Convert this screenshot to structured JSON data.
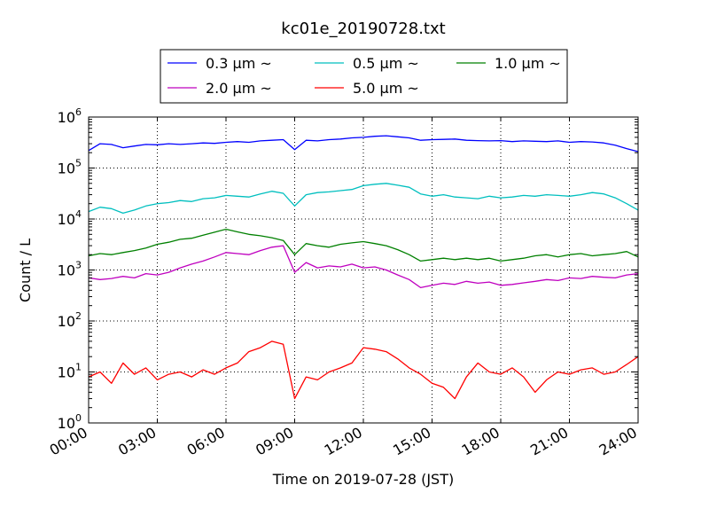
{
  "chart_data": {
    "type": "line",
    "title": "kc01e_20190728.txt",
    "xlabel": "Time on 2019-07-28 (JST)",
    "ylabel": "Count / L",
    "xlim": [
      "00:00",
      "24:00"
    ],
    "x_tick_labels": [
      "00:00",
      "03:00",
      "06:00",
      "09:00",
      "12:00",
      "15:00",
      "18:00",
      "21:00",
      "24:00"
    ],
    "y_scale": "log",
    "ylim": [
      1,
      1000000
    ],
    "y_tick_labels": [
      {
        "base": "10",
        "exp": "0"
      },
      {
        "base": "10",
        "exp": "1"
      },
      {
        "base": "10",
        "exp": "2"
      },
      {
        "base": "10",
        "exp": "3"
      },
      {
        "base": "10",
        "exp": "4"
      },
      {
        "base": "10",
        "exp": "5"
      },
      {
        "base": "10",
        "exp": "6"
      }
    ],
    "grid": true,
    "legend_position": "top",
    "series": [
      {
        "name": "0.3 µm ~",
        "color": "#0000ff",
        "x": [
          "00:00",
          "00:30",
          "01:00",
          "01:30",
          "02:00",
          "02:30",
          "03:00",
          "03:30",
          "04:00",
          "04:30",
          "05:00",
          "05:30",
          "06:00",
          "06:30",
          "07:00",
          "07:30",
          "08:00",
          "08:30",
          "09:00",
          "09:30",
          "10:00",
          "10:30",
          "11:00",
          "11:30",
          "12:00",
          "12:30",
          "13:00",
          "13:30",
          "14:00",
          "14:30",
          "15:00",
          "15:30",
          "16:00",
          "16:30",
          "17:00",
          "17:30",
          "18:00",
          "18:30",
          "19:00",
          "19:30",
          "20:00",
          "20:30",
          "21:00",
          "21:30",
          "22:00",
          "22:30",
          "23:00",
          "23:30",
          "24:00"
        ],
        "values": [
          220000,
          300000,
          290000,
          250000,
          270000,
          290000,
          285000,
          300000,
          290000,
          300000,
          310000,
          305000,
          320000,
          330000,
          320000,
          340000,
          350000,
          360000,
          230000,
          350000,
          340000,
          360000,
          370000,
          390000,
          400000,
          420000,
          430000,
          410000,
          390000,
          350000,
          360000,
          365000,
          370000,
          350000,
          345000,
          340000,
          345000,
          330000,
          340000,
          335000,
          330000,
          340000,
          320000,
          330000,
          325000,
          310000,
          280000,
          240000,
          210000
        ]
      },
      {
        "name": "0.5 µm ~",
        "color": "#00bfbf",
        "x": [
          "00:00",
          "00:30",
          "01:00",
          "01:30",
          "02:00",
          "02:30",
          "03:00",
          "03:30",
          "04:00",
          "04:30",
          "05:00",
          "05:30",
          "06:00",
          "06:30",
          "07:00",
          "07:30",
          "08:00",
          "08:30",
          "09:00",
          "09:30",
          "10:00",
          "10:30",
          "11:00",
          "11:30",
          "12:00",
          "12:30",
          "13:00",
          "13:30",
          "14:00",
          "14:30",
          "15:00",
          "15:30",
          "16:00",
          "16:30",
          "17:00",
          "17:30",
          "18:00",
          "18:30",
          "19:00",
          "19:30",
          "20:00",
          "20:30",
          "21:00",
          "21:30",
          "22:00",
          "22:30",
          "23:00",
          "23:30",
          "24:00"
        ],
        "values": [
          14000,
          17000,
          16000,
          13000,
          15000,
          18000,
          20000,
          21000,
          23000,
          22000,
          25000,
          26000,
          29000,
          28000,
          27000,
          31000,
          35000,
          32000,
          18000,
          30000,
          33000,
          34000,
          36000,
          38000,
          45000,
          48000,
          50000,
          46000,
          42000,
          31000,
          28000,
          30000,
          27000,
          26000,
          25000,
          28000,
          26000,
          27000,
          29000,
          28000,
          30000,
          29000,
          28000,
          30000,
          33000,
          31000,
          26000,
          20000,
          15000
        ]
      },
      {
        "name": "1.0 µm ~",
        "color": "#008000",
        "x": [
          "00:00",
          "00:30",
          "01:00",
          "01:30",
          "02:00",
          "02:30",
          "03:00",
          "03:30",
          "04:00",
          "04:30",
          "05:00",
          "05:30",
          "06:00",
          "06:30",
          "07:00",
          "07:30",
          "08:00",
          "08:30",
          "09:00",
          "09:30",
          "10:00",
          "10:30",
          "11:00",
          "11:30",
          "12:00",
          "12:30",
          "13:00",
          "13:30",
          "14:00",
          "14:30",
          "15:00",
          "15:30",
          "16:00",
          "16:30",
          "17:00",
          "17:30",
          "18:00",
          "18:30",
          "19:00",
          "19:30",
          "20:00",
          "20:30",
          "21:00",
          "21:30",
          "22:00",
          "22:30",
          "23:00",
          "23:30",
          "24:00"
        ],
        "values": [
          1900,
          2100,
          2000,
          2200,
          2400,
          2700,
          3200,
          3500,
          4000,
          4200,
          4800,
          5500,
          6300,
          5600,
          5000,
          4700,
          4300,
          3800,
          2000,
          3300,
          3000,
          2800,
          3200,
          3400,
          3600,
          3300,
          3000,
          2500,
          2000,
          1500,
          1600,
          1700,
          1600,
          1700,
          1600,
          1700,
          1500,
          1600,
          1700,
          1900,
          2000,
          1800,
          2000,
          2100,
          1900,
          2000,
          2100,
          2300,
          1800
        ]
      },
      {
        "name": "2.0 µm ~",
        "color": "#bf00bf",
        "x": [
          "00:00",
          "00:30",
          "01:00",
          "01:30",
          "02:00",
          "02:30",
          "03:00",
          "03:30",
          "04:00",
          "04:30",
          "05:00",
          "05:30",
          "06:00",
          "06:30",
          "07:00",
          "07:30",
          "08:00",
          "08:30",
          "09:00",
          "09:30",
          "10:00",
          "10:30",
          "11:00",
          "11:30",
          "12:00",
          "12:30",
          "13:00",
          "13:30",
          "14:00",
          "14:30",
          "15:00",
          "15:30",
          "16:00",
          "16:30",
          "17:00",
          "17:30",
          "18:00",
          "18:30",
          "19:00",
          "19:30",
          "20:00",
          "20:30",
          "21:00",
          "21:30",
          "22:00",
          "22:30",
          "23:00",
          "23:30",
          "24:00"
        ],
        "values": [
          700,
          650,
          680,
          750,
          700,
          850,
          800,
          900,
          1100,
          1300,
          1500,
          1800,
          2200,
          2100,
          2000,
          2400,
          2800,
          3000,
          900,
          1400,
          1100,
          1200,
          1150,
          1300,
          1100,
          1150,
          1000,
          800,
          650,
          450,
          500,
          550,
          520,
          600,
          550,
          580,
          500,
          520,
          560,
          600,
          650,
          620,
          700,
          680,
          750,
          720,
          700,
          800,
          850
        ]
      },
      {
        "name": "5.0 µm ~",
        "color": "#ff0000",
        "x": [
          "00:00",
          "00:30",
          "01:00",
          "01:30",
          "02:00",
          "02:30",
          "03:00",
          "03:30",
          "04:00",
          "04:30",
          "05:00",
          "05:30",
          "06:00",
          "06:30",
          "07:00",
          "07:30",
          "08:00",
          "08:30",
          "09:00",
          "09:30",
          "10:00",
          "10:30",
          "11:00",
          "11:30",
          "12:00",
          "12:30",
          "13:00",
          "13:30",
          "14:00",
          "14:30",
          "15:00",
          "15:30",
          "16:00",
          "16:30",
          "17:00",
          "17:30",
          "18:00",
          "18:30",
          "19:00",
          "19:30",
          "20:00",
          "20:30",
          "21:00",
          "21:30",
          "22:00",
          "22:30",
          "23:00",
          "23:30",
          "24:00"
        ],
        "values": [
          8,
          10,
          6,
          15,
          9,
          12,
          7,
          9,
          10,
          8,
          11,
          9,
          12,
          15,
          25,
          30,
          40,
          35,
          3,
          8,
          7,
          10,
          12,
          15,
          30,
          28,
          25,
          18,
          12,
          9,
          6,
          5,
          3,
          8,
          15,
          10,
          9,
          12,
          8,
          4,
          7,
          10,
          9,
          11,
          12,
          9,
          10,
          14,
          20
        ]
      }
    ]
  }
}
